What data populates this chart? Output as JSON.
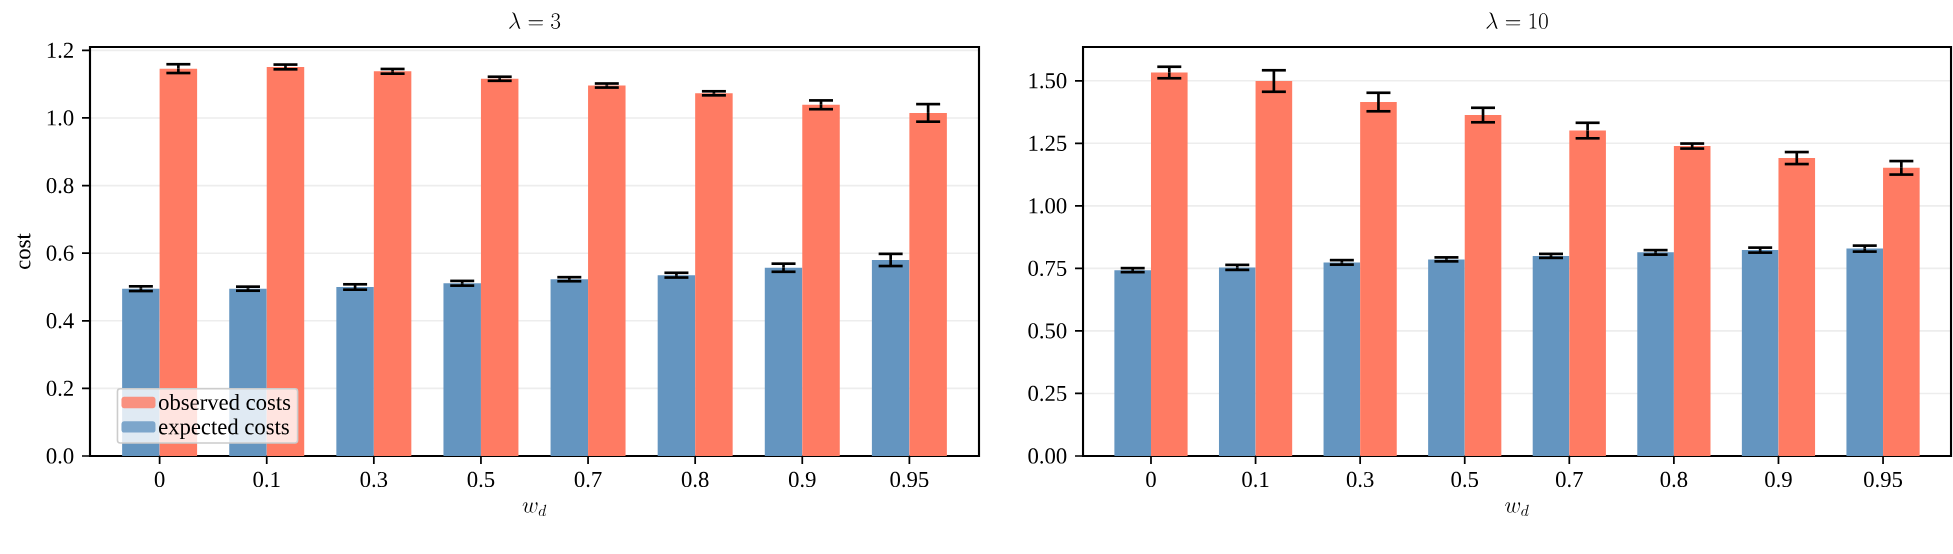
{
  "chart_data": [
    {
      "type": "bar",
      "title": "\\lambda = 3",
      "xlabel": "w_d",
      "ylabel": "cost",
      "categories": [
        "0",
        "0.1",
        "0.3",
        "0.5",
        "0.7",
        "0.8",
        "0.9",
        "0.95"
      ],
      "series": [
        {
          "name": "expected costs",
          "color": "#6495c0",
          "values": [
            0.495,
            0.495,
            0.5,
            0.511,
            0.523,
            0.535,
            0.557,
            0.58
          ],
          "errors": [
            0.007,
            0.006,
            0.008,
            0.007,
            0.006,
            0.007,
            0.012,
            0.018
          ]
        },
        {
          "name": "observed costs",
          "color": "#ff7b63",
          "values": [
            1.146,
            1.151,
            1.138,
            1.116,
            1.096,
            1.073,
            1.039,
            1.015
          ],
          "errors": [
            0.013,
            0.007,
            0.007,
            0.006,
            0.006,
            0.006,
            0.013,
            0.026
          ]
        }
      ],
      "ylim": [
        0,
        1.21
      ],
      "yticks": [
        {
          "value": 0,
          "label": "0.0"
        },
        {
          "value": 0.2,
          "label": "0.2"
        },
        {
          "value": 0.4,
          "label": "0.4"
        },
        {
          "value": 0.6,
          "label": "0.6"
        },
        {
          "value": 0.8,
          "label": "0.8"
        },
        {
          "value": 1.0,
          "label": "1.0"
        },
        {
          "value": 1.2,
          "label": "1.2"
        }
      ],
      "grid": "y",
      "legend": "bottom left"
    },
    {
      "type": "bar",
      "title": "\\lambda = 10",
      "xlabel": "w_d",
      "categories": [
        "0",
        "0.1",
        "0.3",
        "0.5",
        "0.7",
        "0.8",
        "0.9",
        "0.95"
      ],
      "series": [
        {
          "color": "#6495c0",
          "values": [
            0.743,
            0.754,
            0.774,
            0.786,
            0.8,
            0.814,
            0.823,
            0.829
          ],
          "errors": [
            0.008,
            0.01,
            0.009,
            0.008,
            0.008,
            0.009,
            0.01,
            0.012
          ]
        },
        {
          "color": "#ff7b63",
          "values": [
            1.533,
            1.499,
            1.415,
            1.363,
            1.301,
            1.239,
            1.191,
            1.152
          ],
          "errors": [
            0.023,
            0.043,
            0.037,
            0.029,
            0.031,
            0.01,
            0.024,
            0.027
          ]
        }
      ],
      "ylim": [
        0,
        1.635
      ],
      "yticks": [
        {
          "value": 0,
          "label": "0.00"
        },
        {
          "value": 0.25,
          "label": "0.25"
        },
        {
          "value": 0.5,
          "label": "0.50"
        },
        {
          "value": 0.75,
          "label": "0.75"
        },
        {
          "value": 1.0,
          "label": "1.00"
        },
        {
          "value": 1.25,
          "label": "1.25"
        },
        {
          "value": 1.5,
          "label": "1.50"
        }
      ],
      "grid": "y",
      "legend": false
    }
  ]
}
